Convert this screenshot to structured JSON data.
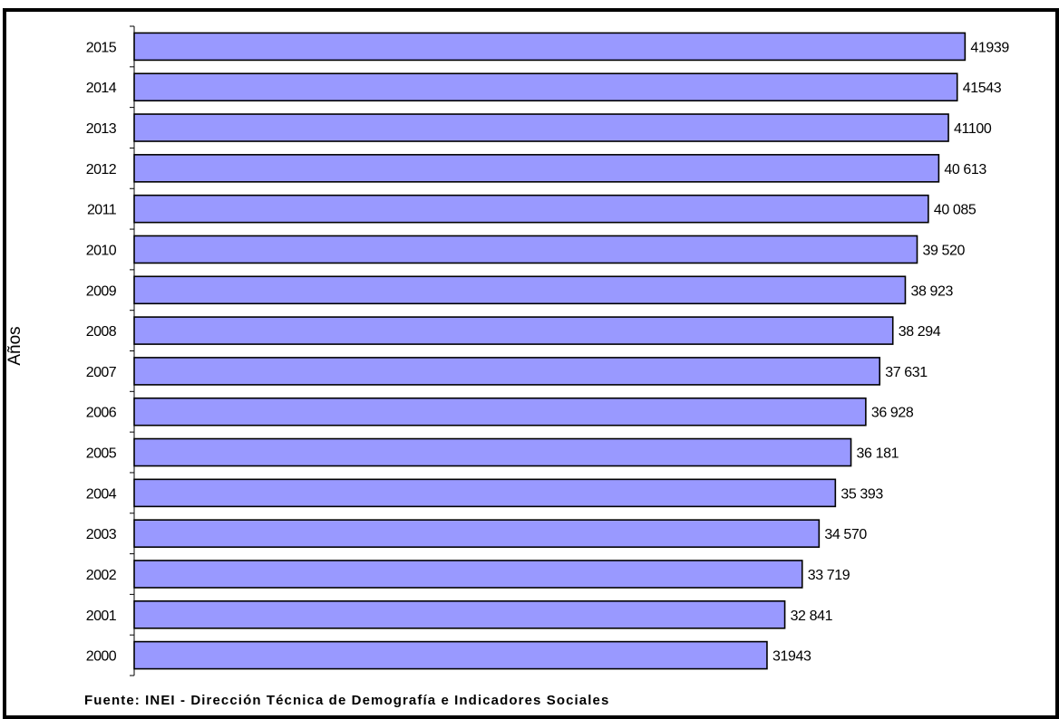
{
  "chart_data": {
    "type": "bar",
    "orientation": "horizontal",
    "categories": [
      "2015",
      "2014",
      "2013",
      "2012",
      "2011",
      "2010",
      "2009",
      "2008",
      "2007",
      "2006",
      "2005",
      "2004",
      "2003",
      "2002",
      "2001",
      "2000"
    ],
    "values": [
      41939,
      41543,
      41100,
      40613,
      40085,
      39520,
      38923,
      38294,
      37631,
      36928,
      36181,
      35393,
      34570,
      33719,
      32841,
      31943
    ],
    "value_labels": [
      "41939",
      "41543",
      "41100",
      "40 613",
      "40 085",
      "39 520",
      "38 923",
      "38 294",
      "37 631",
      "36 928",
      "36 181",
      "35 393",
      "34 570",
      "33 719",
      "32 841",
      "31943"
    ],
    "ylabel": "Años",
    "xlim": [
      0,
      45000
    ],
    "grid": false,
    "bar_color": "#9999ff",
    "bar_border_color": "#000000"
  },
  "source_note": "Fuente: INEI - Dirección Técnica de Demografía e Indicadores Sociales"
}
